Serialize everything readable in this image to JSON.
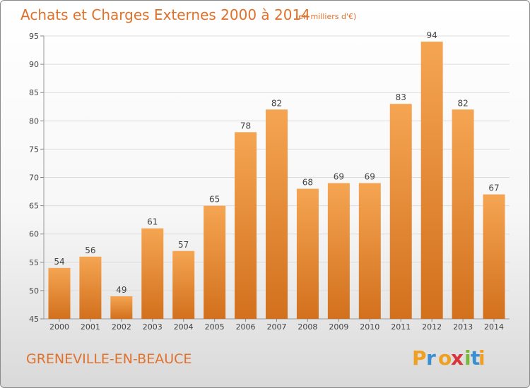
{
  "header": {
    "title": "Achats et Charges Externes 2000 à 2014",
    "unit_note": "(en milliers d'€)"
  },
  "footer": {
    "commune": "GRENEVILLE-EN-BEAUCE",
    "logo_text": "Proxiti"
  },
  "colors": {
    "bar_top": "#f5a552",
    "bar_bottom": "#d2701d",
    "accent": "#e0712a",
    "grid": "#dddddd"
  },
  "chart_data": {
    "type": "bar",
    "title": "Achats et Charges Externes 2000 à 2014",
    "subtitle": "(en milliers d'€)",
    "xlabel": "",
    "ylabel": "",
    "categories": [
      "2000",
      "2001",
      "2002",
      "2003",
      "2004",
      "2005",
      "2006",
      "2007",
      "2008",
      "2009",
      "2010",
      "2011",
      "2012",
      "2013",
      "2014"
    ],
    "values": [
      54,
      56,
      49,
      61,
      57,
      65,
      78,
      82,
      68,
      69,
      69,
      83,
      94,
      82,
      67
    ],
    "ylim": [
      45,
      95
    ],
    "yticks": [
      45,
      50,
      55,
      60,
      65,
      70,
      75,
      80,
      85,
      90,
      95
    ],
    "grid": true,
    "data_labels": true
  }
}
